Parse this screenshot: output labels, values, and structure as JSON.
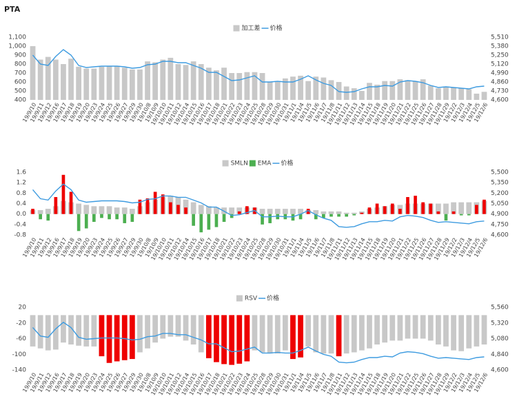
{
  "chart_data": [
    {
      "type": "bar",
      "title": "PTA",
      "categories": [
        "19/9/10",
        "19/9/11",
        "19/9/12",
        "19/9/16",
        "19/9/17",
        "19/9/18",
        "19/9/19",
        "19/9/20",
        "19/9/23",
        "19/9/24",
        "19/9/25",
        "19/9/26",
        "19/9/27",
        "19/9/29",
        "19/9/30",
        "19/10/8",
        "19/10/9",
        "19/10/10",
        "19/10/11",
        "19/10/12",
        "19/10/14",
        "19/10/15",
        "19/10/16",
        "19/10/17",
        "19/10/18",
        "19/10/21",
        "19/10/22",
        "19/10/23",
        "19/10/24",
        "19/10/25",
        "19/10/28",
        "19/10/29",
        "19/10/30",
        "19/10/31",
        "19/11/1",
        "19/11/4",
        "19/11/5",
        "19/11/6",
        "19/11/7",
        "19/11/8",
        "19/11/11",
        "19/11/12",
        "19/11/13",
        "19/11/14",
        "19/11/15",
        "19/11/18",
        "19/11/19",
        "19/11/20",
        "19/11/21",
        "19/11/22",
        "19/11/25",
        "19/11/26",
        "19/11/27",
        "19/11/28",
        "19/11/29",
        "19/12/2",
        "19/12/3",
        "19/12/4",
        "19/12/5",
        "19/12/6"
      ],
      "series": [
        {
          "name": "加工差",
          "type": "bar",
          "color": "#c8c8c8",
          "values": [
            1000,
            850,
            880,
            850,
            800,
            860,
            770,
            750,
            750,
            770,
            780,
            780,
            760,
            740,
            740,
            830,
            820,
            850,
            870,
            800,
            790,
            830,
            800,
            760,
            730,
            760,
            700,
            700,
            710,
            710,
            700,
            600,
            600,
            640,
            660,
            670,
            610,
            660,
            650,
            620,
            600,
            550,
            530,
            500,
            590,
            570,
            610,
            610,
            630,
            620,
            610,
            630,
            560,
            530,
            550,
            540,
            530,
            520,
            470,
            490
          ]
        },
        {
          "name": "价格",
          "type": "line",
          "color": "#3d9be0",
          "axis": "y2",
          "values": [
            5250,
            5120,
            5100,
            5230,
            5330,
            5250,
            5100,
            5070,
            5080,
            5090,
            5090,
            5090,
            5080,
            5060,
            5070,
            5110,
            5120,
            5160,
            5160,
            5140,
            5140,
            5100,
            5060,
            5000,
            5000,
            4940,
            4880,
            4890,
            4920,
            4950,
            4860,
            4860,
            4870,
            4860,
            4860,
            4900,
            4950,
            4890,
            4840,
            4810,
            4720,
            4710,
            4720,
            4760,
            4790,
            4790,
            4810,
            4800,
            4860,
            4880,
            4870,
            4850,
            4810,
            4780,
            4790,
            4780,
            4770,
            4760,
            4790,
            4800
          ]
        }
      ],
      "ylim": [
        400,
        1100
      ],
      "yticks": [
        400,
        500,
        600,
        700,
        800,
        900,
        {
          "value": 1000,
          "label": "1,000"
        },
        {
          "value": 1100,
          "label": "1,100"
        }
      ],
      "y2lim": [
        4600,
        5510
      ],
      "y2ticks": [
        {
          "value": 4600,
          "label": "4,600"
        },
        {
          "value": 4730,
          "label": "4,730"
        },
        {
          "value": 4860,
          "label": "4,860"
        },
        {
          "value": 4990,
          "label": "4,990"
        },
        {
          "value": 5120,
          "label": "5,120"
        },
        {
          "value": 5250,
          "label": "5,250"
        },
        {
          "value": 5380,
          "label": "5,380"
        },
        {
          "value": 5510,
          "label": "5,510"
        }
      ],
      "grid": false,
      "legend": "top"
    },
    {
      "type": "bar",
      "categories": [
        "19/9/10",
        "19/9/11",
        "19/9/12",
        "19/9/16",
        "19/9/17",
        "19/9/18",
        "19/9/19",
        "19/9/20",
        "19/9/23",
        "19/9/24",
        "19/9/25",
        "19/9/26",
        "19/9/27",
        "19/9/29",
        "19/9/30",
        "19/10/8",
        "19/10/9",
        "19/10/10",
        "19/10/11",
        "19/10/12",
        "19/10/14",
        "19/10/15",
        "19/10/16",
        "19/10/17",
        "19/10/18",
        "19/10/21",
        "19/10/22",
        "19/10/23",
        "19/10/24",
        "19/10/25",
        "19/10/28",
        "19/10/29",
        "19/10/30",
        "19/10/31",
        "19/11/1",
        "19/11/4",
        "19/11/5",
        "19/11/6",
        "19/11/7",
        "19/11/8",
        "19/11/11",
        "19/11/12",
        "19/11/13",
        "19/11/14",
        "19/11/15",
        "19/11/18",
        "19/11/19",
        "19/11/20",
        "19/11/21",
        "19/11/22",
        "19/11/25",
        "19/11/26",
        "19/11/27",
        "19/11/28",
        "19/11/29",
        "19/12/2",
        "19/12/3",
        "19/12/4",
        "19/12/5",
        "19/12/6"
      ],
      "series": [
        {
          "name": "SMLN",
          "type": "bar",
          "color": "#c8c8c8",
          "values": [
            0.15,
            0.15,
            0.2,
            0.3,
            0.5,
            0.45,
            0.4,
            0.35,
            0.3,
            0.3,
            0.3,
            0.25,
            0.25,
            0.2,
            0.3,
            0.45,
            0.55,
            0.65,
            0.7,
            0.65,
            0.55,
            0.45,
            0.35,
            0.3,
            0.25,
            0.25,
            0.25,
            0.25,
            0.25,
            0.25,
            0.2,
            0.2,
            0.2,
            0.2,
            0.2,
            0.2,
            0.15,
            0.15,
            0.1,
            0.1,
            0.1,
            0.05,
            0.05,
            0.1,
            0.2,
            0.25,
            0.3,
            0.35,
            0.35,
            0.4,
            0.4,
            0.4,
            0.4,
            0.4,
            0.4,
            0.45,
            0.45,
            0.45,
            0.45,
            0.5
          ]
        },
        {
          "name": "EMA",
          "type": "bar",
          "color": "#4caf50",
          "positive_color": "#ee0000",
          "values": [
            0.2,
            -0.2,
            -0.25,
            0.65,
            1.5,
            0.85,
            -0.65,
            -0.55,
            -0.3,
            -0.15,
            -0.2,
            -0.2,
            -0.35,
            -0.3,
            0.55,
            0.6,
            0.85,
            0.75,
            0.45,
            0.35,
            0.25,
            -0.45,
            -0.7,
            -0.6,
            -0.5,
            -0.3,
            -0.15,
            0.1,
            0.3,
            0.25,
            -0.4,
            -0.35,
            -0.2,
            -0.2,
            -0.25,
            -0.2,
            0.2,
            -0.2,
            -0.15,
            -0.1,
            -0.1,
            -0.1,
            -0.05,
            0.05,
            0.25,
            0.4,
            0.3,
            0.4,
            0.2,
            0.65,
            0.7,
            0.45,
            0.4,
            0.1,
            -0.25,
            0.1,
            -0.05,
            -0.05,
            0.35,
            0.55
          ]
        },
        {
          "name": "价格",
          "type": "line",
          "color": "#3d9be0",
          "axis": "y2",
          "values": [
            5250,
            5120,
            5100,
            5230,
            5330,
            5250,
            5100,
            5070,
            5080,
            5090,
            5090,
            5090,
            5080,
            5060,
            5070,
            5110,
            5120,
            5160,
            5160,
            5140,
            5140,
            5100,
            5060,
            5000,
            5000,
            4940,
            4880,
            4890,
            4920,
            4950,
            4860,
            4860,
            4870,
            4860,
            4860,
            4900,
            4950,
            4890,
            4840,
            4810,
            4720,
            4710,
            4720,
            4760,
            4790,
            4790,
            4810,
            4800,
            4860,
            4880,
            4870,
            4850,
            4810,
            4780,
            4790,
            4780,
            4770,
            4760,
            4790,
            4800
          ]
        }
      ],
      "ylim": [
        -0.8,
        1.6
      ],
      "yticks": [
        -0.8,
        -0.4,
        {
          "value": 0,
          "label": "0.0"
        },
        0.4,
        0.8,
        1.2,
        1.6
      ],
      "y2lim": [
        4600,
        5500
      ],
      "y2ticks": [
        {
          "value": 4600,
          "label": "4,600"
        },
        {
          "value": 4750,
          "label": "4,750"
        },
        {
          "value": 4900,
          "label": "4,900"
        },
        {
          "value": 5050,
          "label": "5,050"
        },
        {
          "value": 5200,
          "label": "5,200"
        },
        {
          "value": 5350,
          "label": "5,350"
        },
        {
          "value": 5500,
          "label": "5,500"
        }
      ],
      "grid": false,
      "legend": "top"
    },
    {
      "type": "bar",
      "categories": [
        "19/9/10",
        "19/9/11",
        "19/9/12",
        "19/9/16",
        "19/9/17",
        "19/9/18",
        "19/9/19",
        "19/9/20",
        "19/9/23",
        "19/9/24",
        "19/9/25",
        "19/9/26",
        "19/9/27",
        "19/9/29",
        "19/9/30",
        "19/10/8",
        "19/10/9",
        "19/10/10",
        "19/10/11",
        "19/10/12",
        "19/10/14",
        "19/10/15",
        "19/10/16",
        "19/10/17",
        "19/10/18",
        "19/10/21",
        "19/10/22",
        "19/10/23",
        "19/10/24",
        "19/10/25",
        "19/10/28",
        "19/10/29",
        "19/10/30",
        "19/10/31",
        "19/11/1",
        "19/11/4",
        "19/11/5",
        "19/11/6",
        "19/11/7",
        "19/11/8",
        "19/11/11",
        "19/11/12",
        "19/11/13",
        "19/11/14",
        "19/11/15",
        "19/11/18",
        "19/11/19",
        "19/11/20",
        "19/11/21",
        "19/11/22",
        "19/11/25",
        "19/11/26",
        "19/11/27",
        "19/11/28",
        "19/11/29",
        "19/12/2",
        "19/12/3",
        "19/12/4",
        "19/12/5",
        "19/12/6"
      ],
      "series": [
        {
          "name": "RSV",
          "type": "bar",
          "color": "#c8c8c8",
          "values": [
            -80,
            -85,
            -90,
            -88,
            -70,
            -75,
            -78,
            -80,
            -80,
            -105,
            -122,
            -118,
            -115,
            -112,
            -95,
            -85,
            -70,
            -60,
            -55,
            -55,
            -65,
            -75,
            -95,
            -110,
            -120,
            -125,
            -127,
            -124,
            -118,
            -90,
            -95,
            -98,
            -98,
            -90,
            -112,
            -108,
            -80,
            -95,
            -98,
            -98,
            -105,
            -98,
            -95,
            -90,
            -85,
            -75,
            -70,
            -65,
            -65,
            -60,
            -60,
            -60,
            -65,
            -75,
            -80,
            -90,
            -92,
            -85,
            -80,
            -75
          ],
          "colors": [
            "#c8c8c8",
            "#c8c8c8",
            "#c8c8c8",
            "#c8c8c8",
            "#c8c8c8",
            "#c8c8c8",
            "#c8c8c8",
            "#c8c8c8",
            "#c8c8c8",
            "#ee0000",
            "#ee0000",
            "#ee0000",
            "#ee0000",
            "#ee0000",
            "#c8c8c8",
            "#c8c8c8",
            "#c8c8c8",
            "#c8c8c8",
            "#c8c8c8",
            "#c8c8c8",
            "#c8c8c8",
            "#c8c8c8",
            "#c8c8c8",
            "#ee0000",
            "#ee0000",
            "#ee0000",
            "#ee0000",
            "#ee0000",
            "#ee0000",
            "#c8c8c8",
            "#c8c8c8",
            "#c8c8c8",
            "#c8c8c8",
            "#c8c8c8",
            "#ee0000",
            "#ee0000",
            "#c8c8c8",
            "#c8c8c8",
            "#c8c8c8",
            "#c8c8c8",
            "#ee0000",
            "#c8c8c8",
            "#c8c8c8",
            "#c8c8c8",
            "#c8c8c8",
            "#c8c8c8",
            "#c8c8c8",
            "#c8c8c8",
            "#c8c8c8",
            "#c8c8c8",
            "#c8c8c8",
            "#c8c8c8",
            "#c8c8c8",
            "#c8c8c8",
            "#c8c8c8",
            "#c8c8c8",
            "#c8c8c8",
            "#c8c8c8",
            "#c8c8c8",
            "#c8c8c8"
          ]
        },
        {
          "name": "价格",
          "type": "line",
          "color": "#3d9be0",
          "axis": "y2",
          "values": [
            5250,
            5120,
            5100,
            5230,
            5330,
            5250,
            5100,
            5070,
            5080,
            5090,
            5090,
            5090,
            5080,
            5060,
            5070,
            5110,
            5120,
            5160,
            5160,
            5140,
            5140,
            5100,
            5060,
            5000,
            5000,
            4940,
            4880,
            4890,
            4920,
            4950,
            4860,
            4860,
            4870,
            4860,
            4860,
            4900,
            4950,
            4890,
            4840,
            4810,
            4720,
            4710,
            4720,
            4760,
            4790,
            4790,
            4810,
            4800,
            4860,
            4880,
            4870,
            4850,
            4810,
            4780,
            4790,
            4780,
            4770,
            4760,
            4790,
            4800
          ]
        }
      ],
      "ylim": [
        -140,
        20
      ],
      "yticks": [
        -140,
        -100,
        -60,
        -20,
        20
      ],
      "y2lim": [
        4600,
        5560
      ],
      "y2ticks": [
        {
          "value": 4600,
          "label": "4,600"
        },
        {
          "value": 4840,
          "label": "4,840"
        },
        {
          "value": 5080,
          "label": "5,080"
        },
        {
          "value": 5320,
          "label": "5,320"
        },
        {
          "value": 5560,
          "label": "5,560"
        }
      ],
      "grid": false,
      "legend": "top"
    }
  ]
}
